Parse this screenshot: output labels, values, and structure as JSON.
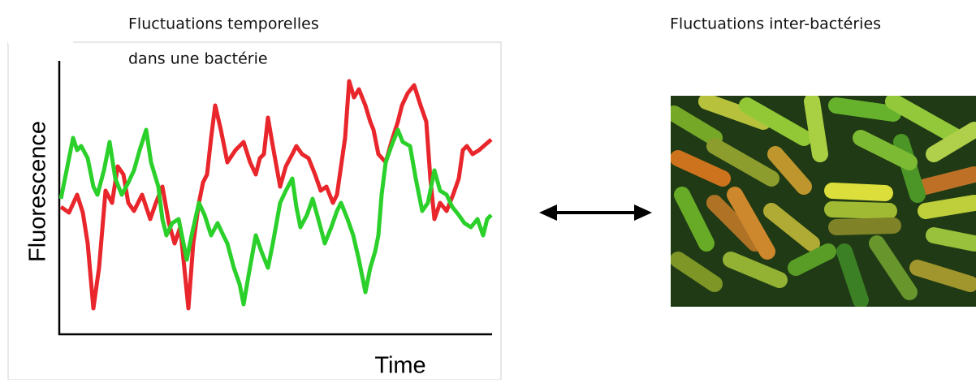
{
  "left": {
    "title_line1": "Fluctuations temporelles",
    "title_line2": "dans une bactérie",
    "y_label": "Fluorescence",
    "x_label": "Time"
  },
  "right": {
    "title": "Fluctuations inter-bactéries"
  }
}
